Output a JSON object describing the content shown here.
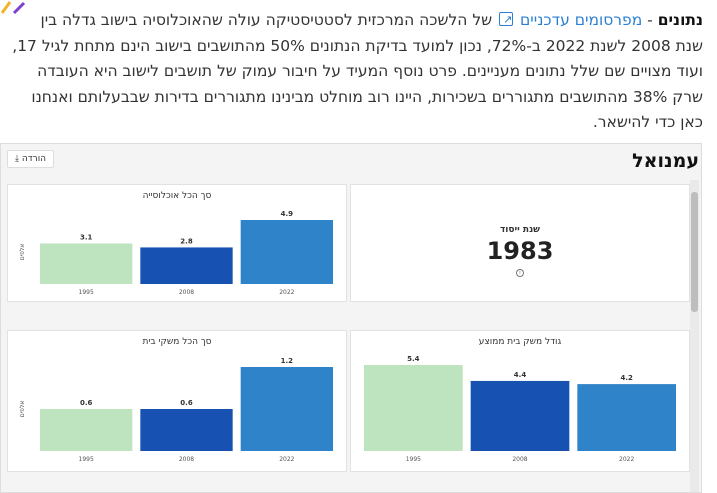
{
  "paragraph": {
    "title_word": "נתונים",
    "dash": " - ",
    "link_text": "מפרסומים עדכניים",
    "line1_rest": " של הלשכה המרכזית לסטטיסטיקה עולה שהאוכלוסיה בישוב גדלה בין",
    "line2": "שנת 2008 לשנת 2022 ב-72%, נכון למועד בדיקת הנתונים 50% מהתושבים בישוב הינם מתחת לגיל 17,",
    "line3": "ועוד מצויים שם שלל נתונים מעניינים. פרט נוסף המעיד על חיבור עמוק של תושבים לישוב היא העובדה",
    "line4": "שרק 38% מהתושבים מתגוררים בשכירות, היינו רוב מוחלט מבינינו מתגוררים בדירות שבבעלותם ואנחנו",
    "line5": "כאן כדי להישאר."
  },
  "embed": {
    "title": "עמנואל",
    "download_label": "הורדה ⤓"
  },
  "kpi": {
    "label": "שנת ייסוד",
    "value": "1983",
    "info_icon": "info-icon"
  },
  "colors": {
    "light": "#bde3bf",
    "dark": "#1752b3",
    "mid": "#2e83c9"
  },
  "chart_data": [
    {
      "type": "bar",
      "title": "סך הכל אוכלוסייה",
      "ylabel": "אלפים",
      "categories": [
        "1995",
        "2008",
        "2022"
      ],
      "values": [
        3.1,
        2.8,
        4.9
      ],
      "labels": [
        "3.1",
        "2.8",
        "4.9"
      ]
    },
    {
      "type": "bar",
      "title": "סך הכל משקי בית",
      "ylabel": "אלפים",
      "categories": [
        "1995",
        "2008",
        "2022"
      ],
      "values": [
        0.6,
        0.6,
        1.2
      ],
      "labels": [
        "0.6",
        "0.6",
        "1.2"
      ]
    },
    {
      "type": "bar",
      "title": "גודל משק בית ממוצע",
      "ylabel": "",
      "categories": [
        "1995",
        "2008",
        "2022"
      ],
      "values": [
        5.4,
        4.4,
        4.2
      ],
      "labels": [
        "5.4",
        "4.4",
        "4.2"
      ]
    }
  ]
}
